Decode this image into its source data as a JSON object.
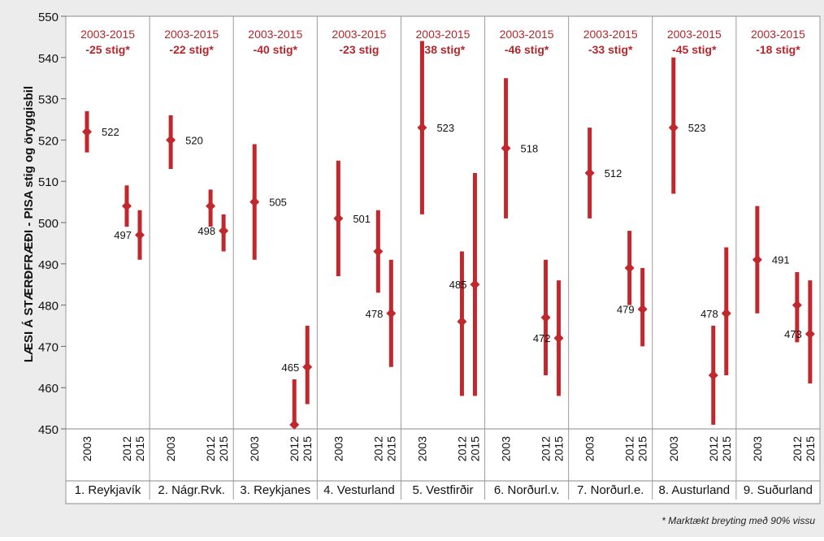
{
  "colors": {
    "background": "#ececec",
    "plot": "#ffffff",
    "marker": "#c0282d",
    "annotation": "#b4262b",
    "grid": "#9a9a9a",
    "axis_text": "#111111"
  },
  "chart_data": {
    "type": "scatter",
    "subtype": "point-with-confidence-interval",
    "ylabel": "LÆSI Á STÆRÐFRÆÐI - PISA stig og öryggisbil",
    "ylim": [
      450,
      550
    ],
    "yticks": [
      450,
      460,
      470,
      480,
      490,
      500,
      510,
      520,
      530,
      540,
      550
    ],
    "footnote": "* Marktækt breyting með 90% vissu",
    "grid": "vertical region separators only",
    "groups": [
      {
        "name": "1. Reykjavík",
        "annotation_years": "2003-2015",
        "annotation_change": "-25 stig*",
        "points": [
          {
            "year": "2003",
            "value": 522,
            "low": 517,
            "high": 527,
            "label": "522"
          },
          {
            "year": "2012",
            "value": 504,
            "low": 499,
            "high": 509,
            "label": ""
          },
          {
            "year": "2015",
            "value": 497,
            "low": 491,
            "high": 503,
            "label": "497"
          }
        ]
      },
      {
        "name": "2. Nágr.Rvk.",
        "annotation_years": "2003-2015",
        "annotation_change": "-22 stig*",
        "points": [
          {
            "year": "2003",
            "value": 520,
            "low": 513,
            "high": 526,
            "label": "520"
          },
          {
            "year": "2012",
            "value": 504,
            "low": 499,
            "high": 508,
            "label": ""
          },
          {
            "year": "2015",
            "value": 498,
            "low": 493,
            "high": 502,
            "label": "498"
          }
        ]
      },
      {
        "name": "3. Reykjanes",
        "annotation_years": "2003-2015",
        "annotation_change": "-40 stig*",
        "points": [
          {
            "year": "2003",
            "value": 505,
            "low": 491,
            "high": 519,
            "label": "505"
          },
          {
            "year": "2012",
            "value": 451,
            "low": 451,
            "high": 462,
            "label": ""
          },
          {
            "year": "2015",
            "value": 465,
            "low": 456,
            "high": 475,
            "label": "465"
          }
        ]
      },
      {
        "name": "4. Vesturland",
        "annotation_years": "2003-2015",
        "annotation_change": "-23 stig",
        "points": [
          {
            "year": "2003",
            "value": 501,
            "low": 487,
            "high": 515,
            "label": "501"
          },
          {
            "year": "2012",
            "value": 493,
            "low": 483,
            "high": 503,
            "label": ""
          },
          {
            "year": "2015",
            "value": 478,
            "low": 465,
            "high": 491,
            "label": "478"
          }
        ]
      },
      {
        "name": "5. Vestfirðir",
        "annotation_years": "2003-2015",
        "annotation_change": "-38 stig*",
        "points": [
          {
            "year": "2003",
            "value": 523,
            "low": 502,
            "high": 544,
            "label": "523"
          },
          {
            "year": "2012",
            "value": 476,
            "low": 458,
            "high": 493,
            "label": ""
          },
          {
            "year": "2015",
            "value": 485,
            "low": 458,
            "high": 512,
            "label": "485"
          }
        ]
      },
      {
        "name": "6. Norðurl.v.",
        "annotation_years": "2003-2015",
        "annotation_change": "-46 stig*",
        "points": [
          {
            "year": "2003",
            "value": 518,
            "low": 501,
            "high": 535,
            "label": "518"
          },
          {
            "year": "2012",
            "value": 477,
            "low": 463,
            "high": 491,
            "label": ""
          },
          {
            "year": "2015",
            "value": 472,
            "low": 458,
            "high": 486,
            "label": "472"
          }
        ]
      },
      {
        "name": "7. Norðurl.e.",
        "annotation_years": "2003-2015",
        "annotation_change": "-33 stig*",
        "points": [
          {
            "year": "2003",
            "value": 512,
            "low": 501,
            "high": 523,
            "label": "512"
          },
          {
            "year": "2012",
            "value": 489,
            "low": 480,
            "high": 498,
            "label": ""
          },
          {
            "year": "2015",
            "value": 479,
            "low": 470,
            "high": 489,
            "label": "479"
          }
        ]
      },
      {
        "name": "8. Austurland",
        "annotation_years": "2003-2015",
        "annotation_change": "-45 stig*",
        "points": [
          {
            "year": "2003",
            "value": 523,
            "low": 507,
            "high": 540,
            "label": "523"
          },
          {
            "year": "2012",
            "value": 463,
            "low": 451,
            "high": 475,
            "label": ""
          },
          {
            "year": "2015",
            "value": 478,
            "low": 463,
            "high": 494,
            "label": "478"
          }
        ]
      },
      {
        "name": "9. Suðurland",
        "annotation_years": "2003-2015",
        "annotation_change": "-18 stig*",
        "points": [
          {
            "year": "2003",
            "value": 491,
            "low": 478,
            "high": 504,
            "label": "491"
          },
          {
            "year": "2012",
            "value": 480,
            "low": 471,
            "high": 488,
            "label": ""
          },
          {
            "year": "2015",
            "value": 473,
            "low": 461,
            "high": 486,
            "label": "473"
          }
        ]
      }
    ]
  }
}
